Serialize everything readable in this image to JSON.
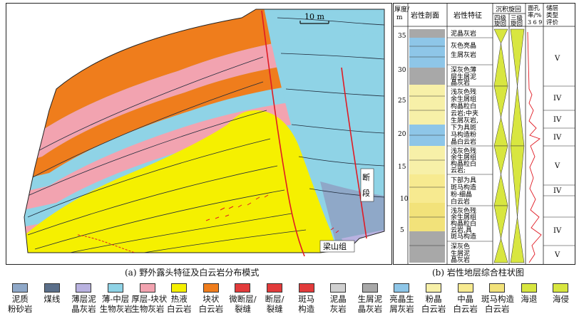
{
  "panel_a": {
    "scale_label": "10 m",
    "fault_label_1": "断",
    "fault_label_2": "段",
    "formation_label": "梁山组",
    "caption": "(a) 野外露头特征及白云岩分布模式"
  },
  "panel_b": {
    "caption": "(b) 岩性地层综合柱状图",
    "headers": {
      "thickness": [
        "厚度/",
        "m"
      ],
      "column": "岩性剖面",
      "features": "岩性特征",
      "cycle": "沉积旋回",
      "cycle4": [
        "四级",
        "旋回"
      ],
      "cycle3": [
        "三级",
        "旋回"
      ],
      "porosity": [
        "面孔",
        "率/%",
        "3 6 9"
      ],
      "evaluation": [
        "储层",
        "类型",
        "评价"
      ]
    },
    "depth_ticks": [
      "35",
      "30",
      "25",
      "20",
      "15",
      "10",
      "5"
    ],
    "features": [
      {
        "lines": [
          "泥晶灰岩"
        ]
      },
      {
        "lines": [
          "灰色亮晶",
          "生屑灰岩"
        ]
      },
      {
        "lines": [
          "深灰色薄",
          "层生屑泥",
          "晶灰岩"
        ]
      },
      {
        "lines": [
          "浅灰色残",
          "余生屑组",
          "构晶粒白",
          "云岩;中夹",
          "生屑灰岩,",
          "下为具斑",
          "马构造粉",
          "晶白云岩"
        ]
      },
      {
        "lines": [
          "浅灰色残",
          "余生屑组",
          "构晶粒白",
          "云岩;"
        ]
      },
      {
        "lines": [
          "下部为具",
          "斑马构造",
          "粉-细晶",
          "白云岩"
        ]
      },
      {
        "lines": [
          "浅灰色残",
          "余生屑组",
          "构晶粒白",
          "云岩,具",
          "斑马构造"
        ]
      },
      {
        "lines": [
          "深灰色",
          "生屑泥",
          "晶灰岩"
        ]
      }
    ],
    "evaluation_values": [
      "V",
      "IV",
      "IV",
      "IV",
      "V",
      "IV",
      "IV",
      "V"
    ]
  },
  "legend": [
    {
      "label": [
        "泥质",
        "粉砂岩"
      ],
      "color": "#8fa8c8",
      "icon": "argillaceous-siltstone-swatch"
    },
    {
      "label": [
        "煤线"
      ],
      "color": "#5b6f8a",
      "icon": "coal-line-swatch"
    },
    {
      "label": [
        "薄层泥",
        "晶灰岩"
      ],
      "color": "#b9b2e0",
      "icon": "thin-micrite-swatch"
    },
    {
      "label": [
        "薄-中层",
        "生物灰岩"
      ],
      "color": "#8fd3e6",
      "icon": "thin-medium-bioclastic-swatch"
    },
    {
      "label": [
        "厚层-块状",
        "生物灰岩"
      ],
      "color": "#f2a3b0",
      "icon": "thick-bioclastic-swatch"
    },
    {
      "label": [
        "热液",
        "白云岩"
      ],
      "color": "#f5f000",
      "icon": "hydrothermal-dolomite-swatch"
    },
    {
      "label": [
        "块状",
        "白云岩"
      ],
      "color": "#ef7d1c",
      "icon": "massive-dolomite-swatch"
    },
    {
      "label": [
        "微断层/",
        "裂缝"
      ],
      "color": "#e23b3b",
      "icon": "micro-fault-swatch"
    },
    {
      "label": [
        "断层/",
        "裂缝"
      ],
      "color": "#e23b3b",
      "icon": "fault-swatch"
    },
    {
      "label": [
        "斑马",
        "构造"
      ],
      "color": "#e23b3b",
      "icon": "zebra-structure-swatch"
    },
    {
      "label": [
        "泥晶",
        "灰岩"
      ],
      "color": "#d0d0d0",
      "icon": "micrite-swatch"
    },
    {
      "label": [
        "生屑泥",
        "晶灰岩"
      ],
      "color": "#a8a8a8",
      "icon": "bioclastic-micrite-swatch"
    },
    {
      "label": [
        "亮晶生",
        "屑灰岩"
      ],
      "color": "#8ec6e8",
      "icon": "sparry-bioclastic-swatch"
    },
    {
      "label": [
        "粉晶",
        "白云岩"
      ],
      "color": "#f7f0a8",
      "icon": "powder-dolomite-swatch"
    },
    {
      "label": [
        "中晶",
        "白云岩"
      ],
      "color": "#f7ea90",
      "icon": "medium-dolomite-swatch"
    },
    {
      "label": [
        "斑马构造",
        "白云岩"
      ],
      "color": "#f2e27a",
      "icon": "zebra-dolomite-swatch"
    },
    {
      "label": [
        "海退"
      ],
      "color": "#d8e640",
      "icon": "regression-icon"
    },
    {
      "label": [
        "海侵"
      ],
      "color": "#d8e640",
      "icon": "transgression-icon"
    }
  ]
}
